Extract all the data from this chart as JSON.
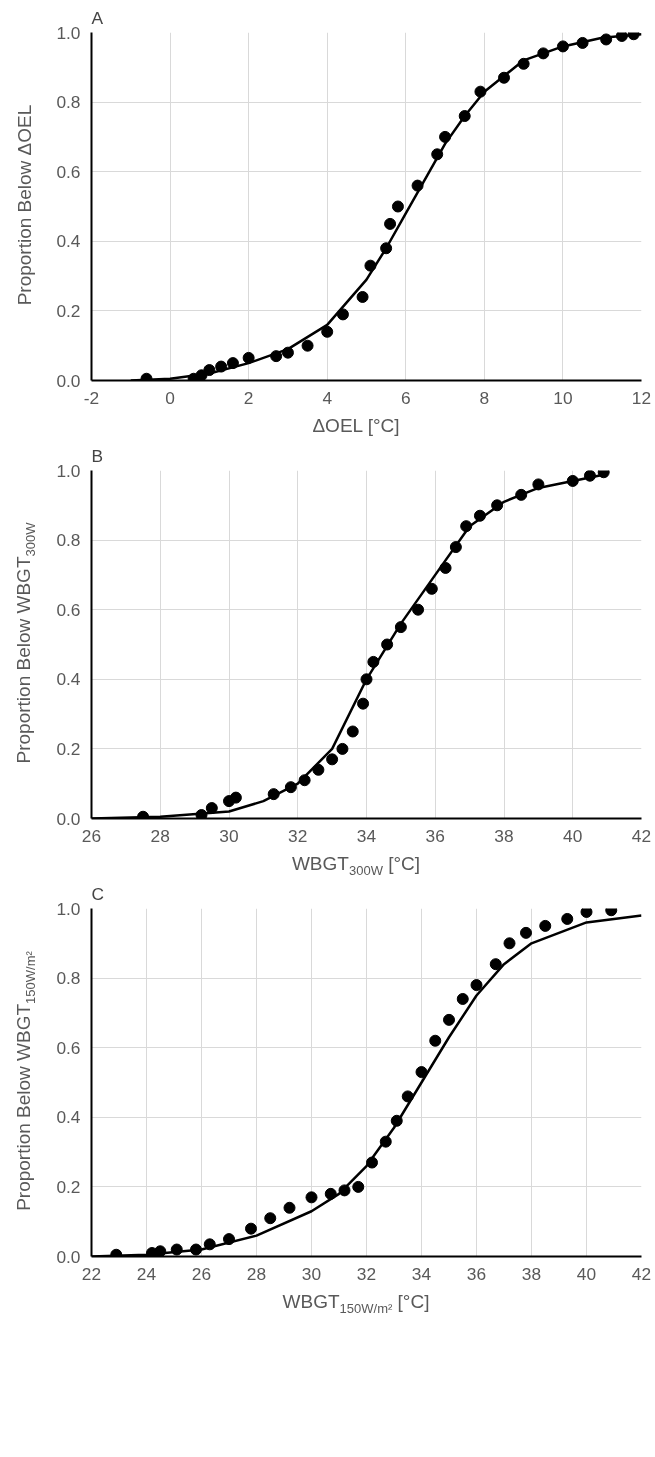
{
  "chart_data": [
    {
      "type": "scatter",
      "title": "A",
      "xlabel": "ΔOEL [°C]",
      "ylabel": "Proportion Below ΔOEL",
      "xlim": [
        -2,
        12
      ],
      "xticks": [
        -2,
        0,
        2,
        4,
        6,
        8,
        10,
        12
      ],
      "ylim": [
        0,
        1
      ],
      "yticks": [
        {
          "value": 0,
          "label": "0.0"
        },
        {
          "value": 0.2,
          "label": "0.2"
        },
        {
          "value": 0.4,
          "label": "0.4"
        },
        {
          "value": 0.6,
          "label": "0.6"
        },
        {
          "value": 0.8,
          "label": "0.8"
        },
        {
          "value": 1,
          "label": "1.0"
        }
      ],
      "grid": true,
      "series": [
        {
          "marker": "circle",
          "color": "#000000",
          "x": [
            -0.6,
            0.6,
            0.8,
            1.0,
            1.3,
            1.6,
            2.0,
            2.7,
            3.0,
            3.5,
            4.0,
            4.4,
            4.9,
            5.1,
            5.5,
            5.6,
            5.8,
            6.3,
            6.8,
            7.0,
            7.5,
            7.9,
            8.5,
            9.0,
            9.5,
            10.0,
            10.5,
            11.1,
            11.5,
            11.8
          ],
          "values": [
            0.005,
            0.005,
            0.015,
            0.03,
            0.04,
            0.05,
            0.065,
            0.07,
            0.08,
            0.1,
            0.14,
            0.19,
            0.24,
            0.33,
            0.38,
            0.45,
            0.5,
            0.56,
            0.65,
            0.7,
            0.76,
            0.83,
            0.87,
            0.91,
            0.94,
            0.96,
            0.97,
            0.98,
            0.99,
            0.995
          ]
        },
        {
          "type": "line",
          "marker": "none",
          "line_style": "solid",
          "color": "#000000",
          "x": [
            -1,
            0,
            1,
            2,
            3,
            4,
            5,
            5.5,
            6,
            6.5,
            7,
            7.5,
            8,
            9,
            10,
            11,
            12
          ],
          "values": [
            0,
            0.005,
            0.02,
            0.05,
            0.09,
            0.16,
            0.29,
            0.38,
            0.48,
            0.58,
            0.68,
            0.76,
            0.83,
            0.92,
            0.96,
            0.985,
            0.995
          ]
        }
      ]
    },
    {
      "type": "scatter",
      "title": "B",
      "xlabel": "WBGT$_{300W}$ [°C]",
      "ylabel": "Proportion Below WBGT$_{300W}$",
      "xlim": [
        26,
        42
      ],
      "xticks": [
        26,
        28,
        30,
        32,
        34,
        36,
        38,
        40,
        42
      ],
      "ylim": [
        0,
        1
      ],
      "yticks": [
        {
          "value": 0,
          "label": "0.0"
        },
        {
          "value": 0.2,
          "label": "0.2"
        },
        {
          "value": 0.4,
          "label": "0.4"
        },
        {
          "value": 0.6,
          "label": "0.6"
        },
        {
          "value": 0.8,
          "label": "0.8"
        },
        {
          "value": 1,
          "label": "1.0"
        }
      ],
      "grid": true,
      "series": [
        {
          "marker": "circle",
          "color": "#000000",
          "x": [
            27.5,
            29.2,
            29.5,
            30,
            30.2,
            31.3,
            31.8,
            32.2,
            32.6,
            33.0,
            33.3,
            33.6,
            33.9,
            34.0,
            34.2,
            34.6,
            35.0,
            35.5,
            35.9,
            36.3,
            36.6,
            36.9,
            37.3,
            37.8,
            38.5,
            39.0,
            40.0,
            40.5,
            40.9
          ],
          "values": [
            0.005,
            0.01,
            0.03,
            0.05,
            0.06,
            0.07,
            0.09,
            0.11,
            0.14,
            0.17,
            0.2,
            0.25,
            0.33,
            0.4,
            0.45,
            0.5,
            0.55,
            0.6,
            0.66,
            0.72,
            0.78,
            0.84,
            0.87,
            0.9,
            0.93,
            0.96,
            0.97,
            0.985,
            0.995
          ]
        },
        {
          "type": "line",
          "marker": "none",
          "line_style": "solid",
          "color": "#000000",
          "x": [
            26,
            28,
            30,
            31,
            32,
            33,
            34,
            35,
            36,
            37,
            38,
            39,
            40,
            41
          ],
          "values": [
            0,
            0.005,
            0.02,
            0.05,
            0.1,
            0.2,
            0.4,
            0.56,
            0.7,
            0.84,
            0.91,
            0.95,
            0.97,
            0.99
          ]
        }
      ]
    },
    {
      "type": "scatter",
      "title": "C",
      "xlabel": "WBGT$_{150W/m²}$ [°C]",
      "ylabel": "Proportion Below WBGT$_{150W/m²}$",
      "xlim": [
        22,
        42
      ],
      "xticks": [
        22,
        24,
        26,
        28,
        30,
        32,
        34,
        36,
        38,
        40,
        42
      ],
      "ylim": [
        0,
        1
      ],
      "yticks": [
        {
          "value": 0,
          "label": "0.0"
        },
        {
          "value": 0.2,
          "label": "0.2"
        },
        {
          "value": 0.4,
          "label": "0.4"
        },
        {
          "value": 0.6,
          "label": "0.6"
        },
        {
          "value": 0.8,
          "label": "0.8"
        },
        {
          "value": 1,
          "label": "1.0"
        }
      ],
      "grid": true,
      "series": [
        {
          "marker": "circle",
          "color": "#000000",
          "x": [
            22.9,
            24.2,
            24.5,
            25.1,
            25.8,
            26.3,
            27,
            27.8,
            28.5,
            29.2,
            30,
            30.7,
            31.2,
            31.7,
            32.2,
            32.7,
            33.1,
            33.5,
            34.0,
            34.5,
            35,
            35.5,
            36.0,
            36.7,
            37.2,
            37.8,
            38.5,
            39.3,
            40.0,
            40.9
          ],
          "values": [
            0.005,
            0.01,
            0.015,
            0.02,
            0.02,
            0.035,
            0.05,
            0.08,
            0.11,
            0.14,
            0.17,
            0.18,
            0.19,
            0.2,
            0.27,
            0.33,
            0.39,
            0.46,
            0.53,
            0.62,
            0.68,
            0.74,
            0.78,
            0.84,
            0.9,
            0.93,
            0.95,
            0.97,
            0.99,
            0.995
          ]
        },
        {
          "type": "line",
          "marker": "none",
          "line_style": "solid",
          "color": "#000000",
          "x": [
            22,
            24,
            26,
            28,
            30,
            31,
            32,
            33,
            34,
            35,
            36,
            37,
            38,
            40,
            42
          ],
          "values": [
            0,
            0.005,
            0.02,
            0.06,
            0.13,
            0.18,
            0.26,
            0.37,
            0.5,
            0.63,
            0.75,
            0.84,
            0.9,
            0.96,
            0.98
          ]
        }
      ]
    }
  ]
}
